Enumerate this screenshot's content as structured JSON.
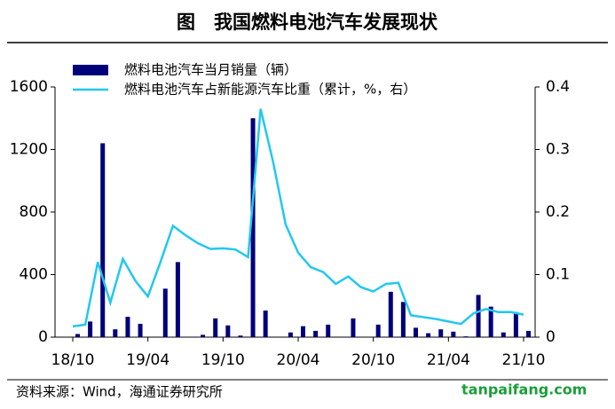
{
  "chart_data": {
    "type": "bar-line",
    "title": "图　我国燃料电池汽车发展现状",
    "source": "资料来源：Wind，海通证券研究所",
    "watermark": "tanpaifang.com",
    "categories": [
      "18/10",
      null,
      null,
      null,
      null,
      null,
      "19/04",
      null,
      null,
      null,
      null,
      null,
      "19/10",
      null,
      null,
      null,
      null,
      null,
      "20/04",
      null,
      null,
      null,
      null,
      null,
      "20/10",
      null,
      null,
      null,
      null,
      null,
      "21/04",
      null,
      null,
      null,
      null,
      null,
      "21/10"
    ],
    "series": [
      {
        "name": "燃料电池汽车当月销量（辆）",
        "color": "#00007a",
        "type": "bar",
        "values": [
          20,
          100,
          1240,
          50,
          130,
          85,
          0,
          310,
          480,
          0,
          15,
          120,
          75,
          10,
          1400,
          170,
          0,
          30,
          70,
          40,
          80,
          0,
          120,
          0,
          80,
          290,
          225,
          60,
          25,
          50,
          35,
          5,
          270,
          195,
          30,
          160,
          40
        ]
      },
      {
        "name": "燃料电池汽车占新能源汽车比重（累计，%，右）",
        "color": "#22c8ee",
        "type": "line",
        "axis": "y2",
        "values": [
          0.017,
          0.02,
          0.12,
          0.055,
          0.125,
          0.09,
          0.065,
          0.12,
          0.178,
          0.163,
          0.15,
          0.141,
          0.142,
          0.14,
          0.128,
          0.365,
          0.28,
          0.18,
          0.135,
          0.112,
          0.104,
          0.085,
          0.097,
          0.08,
          0.073,
          0.085,
          0.087,
          0.035,
          0.032,
          0.029,
          0.025,
          0.021,
          0.038,
          0.045,
          0.04,
          0.04,
          0.036
        ]
      }
    ],
    "ylim": [
      0,
      1600
    ],
    "yticks": [
      0,
      400,
      800,
      1200,
      1600
    ],
    "y2lim": [
      0,
      0.4
    ],
    "y2ticks": [
      0,
      0.1,
      0.2,
      0.3,
      0.4
    ]
  }
}
